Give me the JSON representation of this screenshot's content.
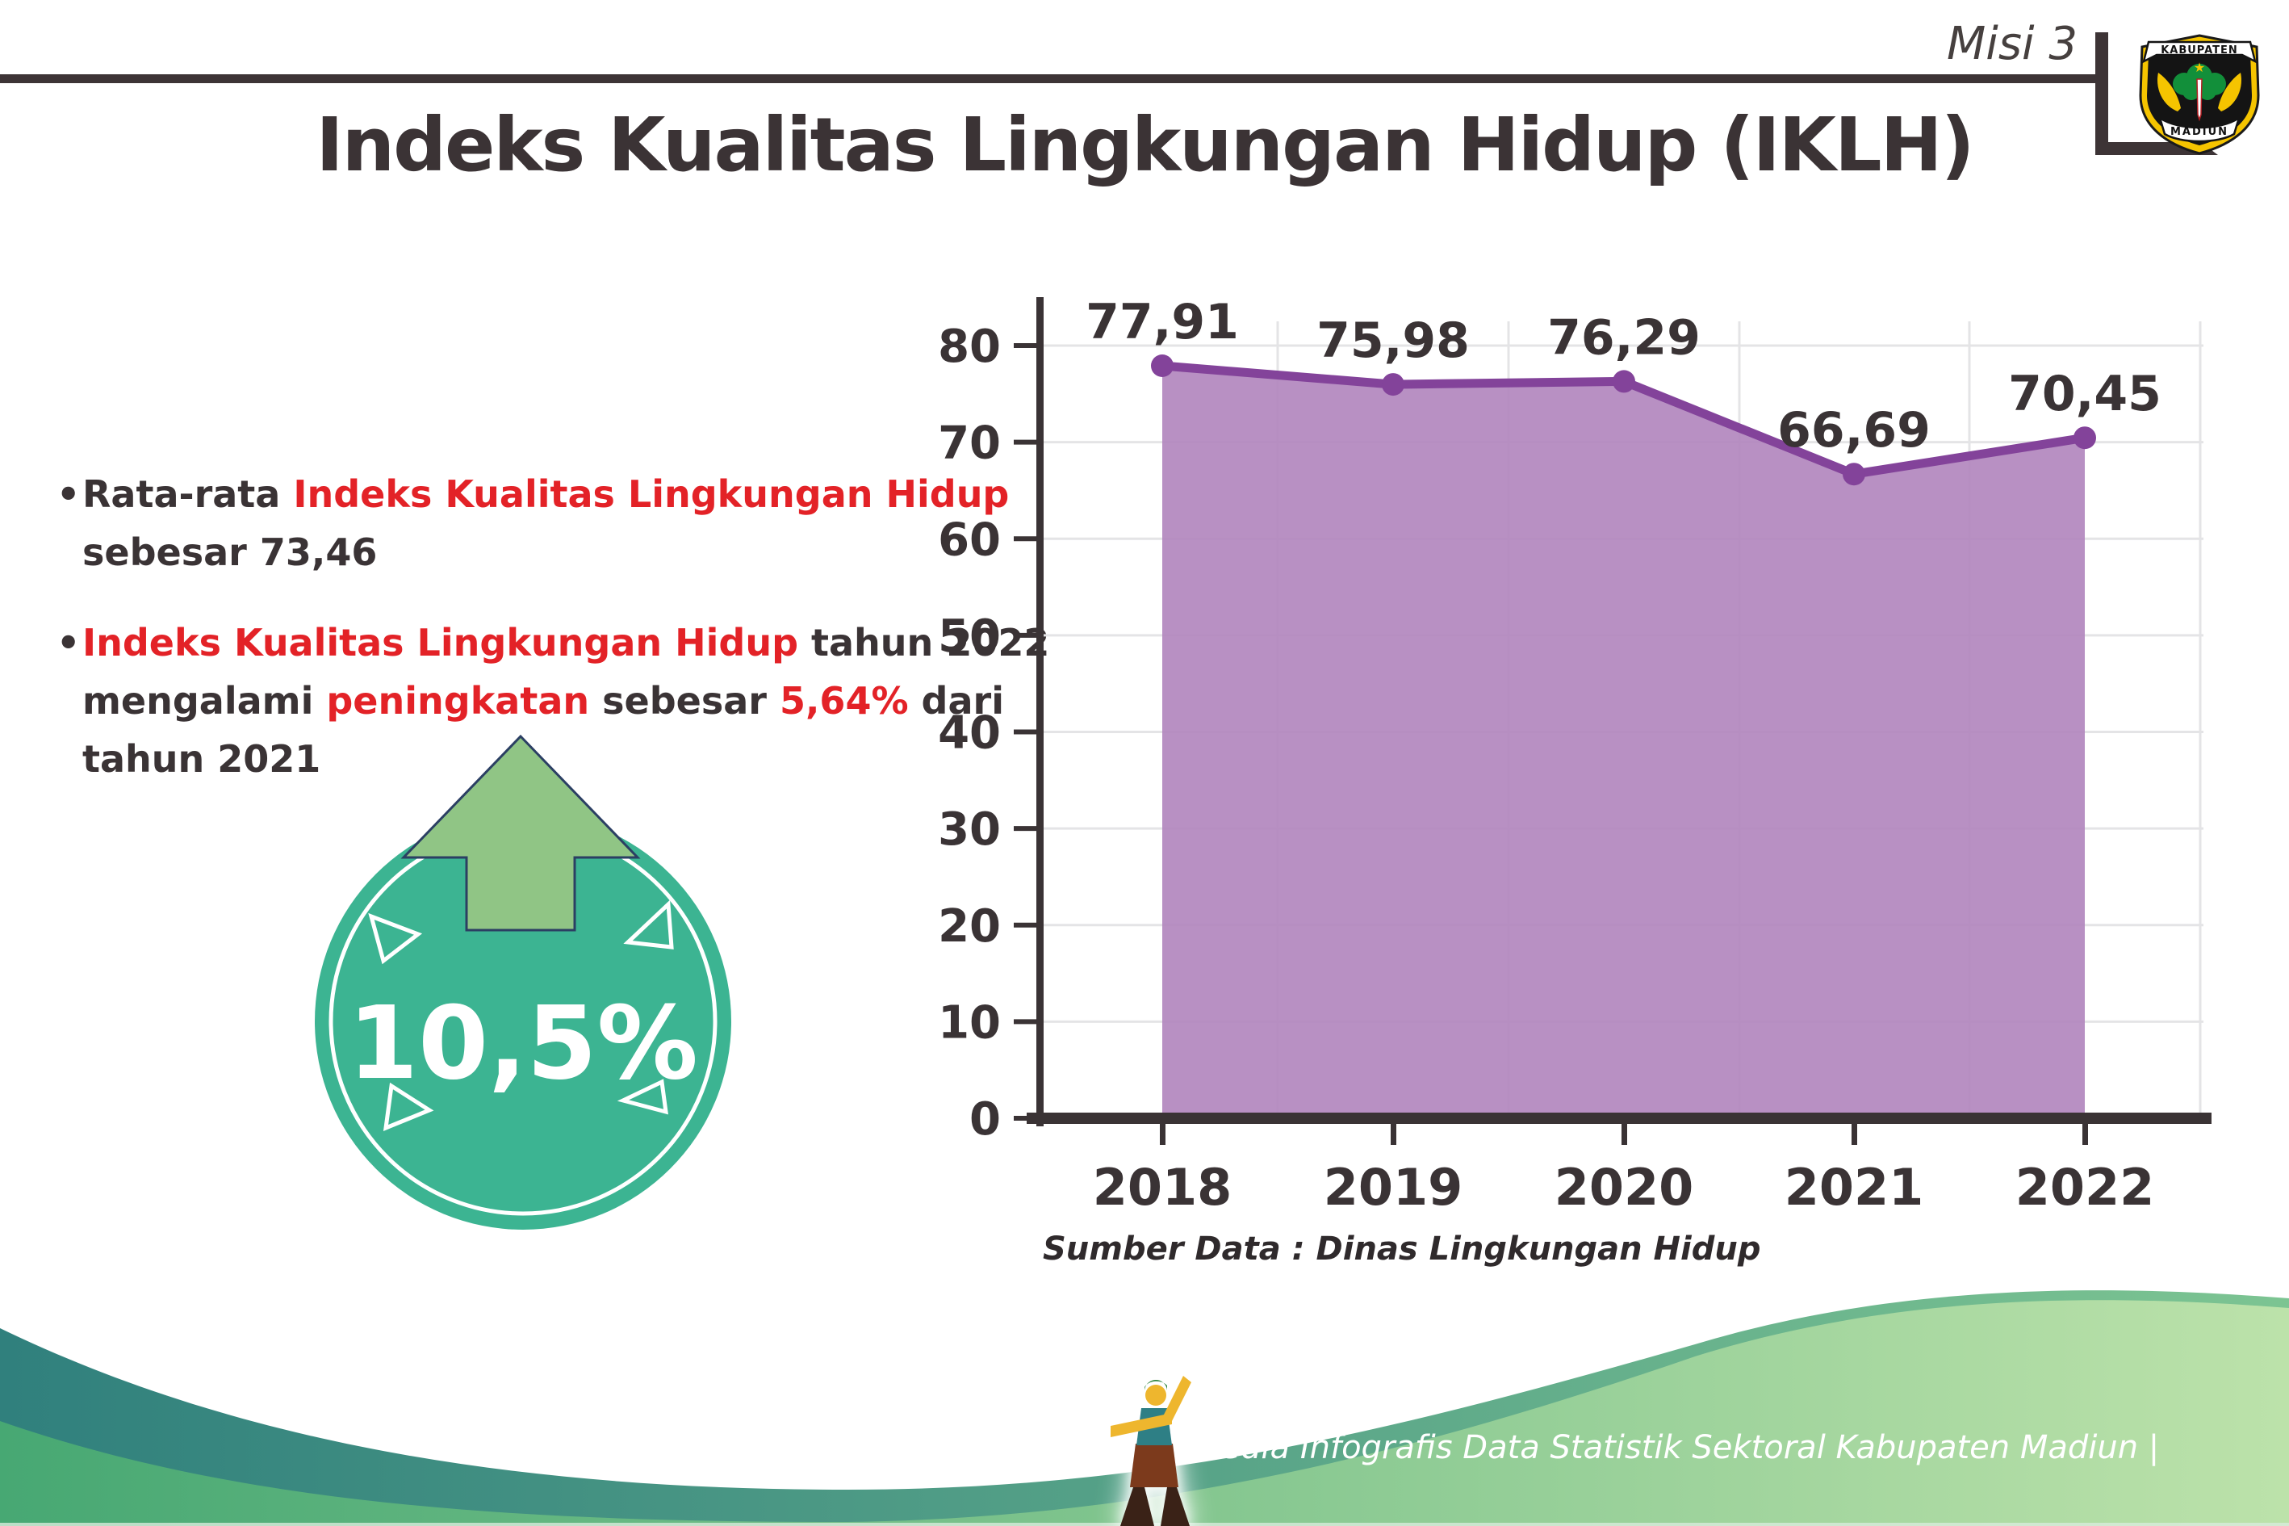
{
  "header": {
    "misi_label": "Misi 3",
    "logo": {
      "top_text": "KABUPATEN",
      "bottom_text": "MADIUN"
    }
  },
  "title": "Indeks Kualitas Lingkungan Hidup (IKLH)",
  "bullets": {
    "marker": "•",
    "b1": {
      "dark1": "Rata-rata ",
      "red1": "Indeks Kualitas Lingkungan Hidup",
      "line2": "sebesar 73,46"
    },
    "b2": {
      "red1": "Indeks Kualitas Lingkungan Hidup",
      "dark1": " tahun 2022",
      "dark2": "mengalami ",
      "red2": "peningkatan",
      "dark3": " sebesar ",
      "red3": "5,64%",
      "dark4": " dari",
      "line3": "tahun 2021"
    }
  },
  "badge": {
    "value": "10,5%"
  },
  "chart_data": {
    "type": "area",
    "categories": [
      "2018",
      "2019",
      "2020",
      "2021",
      "2022"
    ],
    "values": [
      77.91,
      75.98,
      76.29,
      66.69,
      70.45
    ],
    "value_labels": [
      "77,91",
      "75,98",
      "76,29",
      "66,69",
      "70,45"
    ],
    "title": "",
    "xlabel": "",
    "ylabel": "",
    "ylim": [
      0,
      80
    ],
    "ytick_step": 10,
    "grid": true,
    "legend": "none",
    "source_note": "Sumber Data : Dinas Lingkungan Hidup"
  },
  "footer": {
    "text": "Media Infografis Data Statistik Sektoral Kabupaten Madiun |"
  },
  "colors": {
    "accent_red": "#e32227",
    "text_dark": "#3a3335",
    "badge_teal": "#3cb492",
    "arrow_green": "#90c585",
    "arrow_outline": "#2b3f63",
    "area_fill": "#b287be",
    "area_line": "#83439a",
    "gridline": "#e4e4e6",
    "footer_teal_dark": "#30807d",
    "footer_teal_light": "#7cc492",
    "footer_green_dark": "#47a873",
    "footer_green_light": "#bce2aa"
  }
}
